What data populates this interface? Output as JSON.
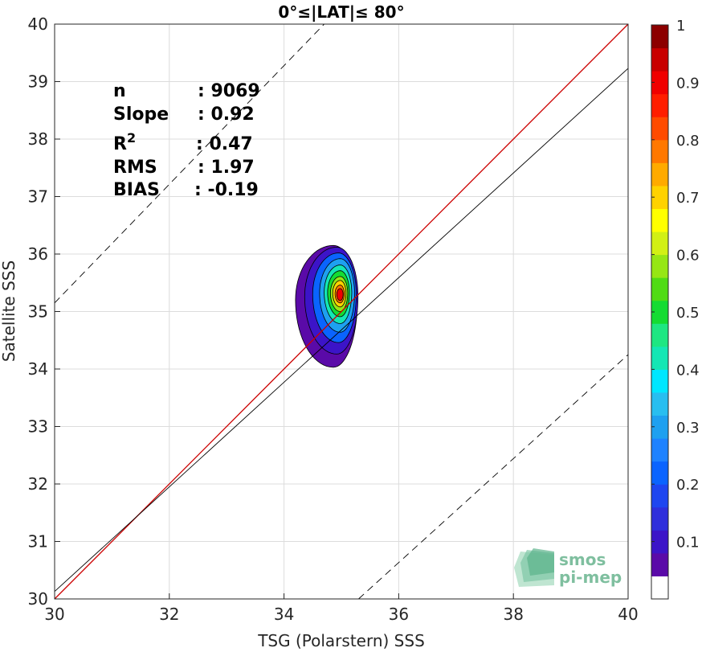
{
  "chart_data": {
    "type": "contour-density-scatter",
    "title": "0°≤|LAT|≤ 80°",
    "xlabel": "TSG (Polarstern) SSS",
    "ylabel": "Satellite SSS",
    "xlim": [
      30,
      40
    ],
    "ylim": [
      30,
      40
    ],
    "xticks": [
      "30",
      "32",
      "34",
      "36",
      "38",
      "40"
    ],
    "yticks": [
      "30",
      "31",
      "32",
      "33",
      "34",
      "35",
      "36",
      "37",
      "38",
      "39",
      "40"
    ],
    "grid": true,
    "stats": [
      {
        "label": "n",
        "sep": ": ",
        "value": "9069"
      },
      {
        "label": "Slope",
        "sep": ": ",
        "value": "0.92"
      },
      {
        "label": "R",
        "sup": "2",
        "sep": ": ",
        "value": "0.47"
      },
      {
        "label": "RMS",
        "sep": ": ",
        "value": "1.97"
      },
      {
        "label": "BIAS",
        "sep": ": ",
        "value": "-0.19"
      }
    ],
    "lines": [
      {
        "name": "identity",
        "color": "#cc0000",
        "style": "solid",
        "points": [
          [
            30,
            30
          ],
          [
            40,
            40
          ]
        ]
      },
      {
        "name": "regression",
        "color": "#000000",
        "style": "solid",
        "points": [
          [
            30,
            30.13
          ],
          [
            40,
            39.23
          ]
        ]
      },
      {
        "name": "upper-bound",
        "color": "#000000",
        "style": "dashed",
        "points": [
          [
            30,
            35.15
          ],
          [
            34.7,
            40
          ]
        ]
      },
      {
        "name": "lower-bound",
        "color": "#000000",
        "style": "dashed",
        "points": [
          [
            35.3,
            30
          ],
          [
            40,
            34.25
          ]
        ]
      }
    ],
    "density_center": [
      34.98,
      35.3
    ],
    "contours": [
      {
        "level": 0.05,
        "rx": [
          0.66,
          0.42
        ],
        "ry": [
          1.17,
          0.95
        ],
        "shift": [
          -0.12,
          -0.1
        ]
      },
      {
        "level": 0.1,
        "rx": [
          0.56,
          0.37
        ],
        "ry": [
          1.0,
          0.86
        ],
        "shift": [
          -0.06,
          -0.04
        ]
      },
      {
        "level": 0.2,
        "rx": [
          0.45,
          0.31
        ],
        "ry": [
          0.84,
          0.72
        ],
        "shift": [
          -0.03,
          0.0
        ]
      },
      {
        "level": 0.3,
        "rx": [
          0.36,
          0.25
        ],
        "ry": [
          0.68,
          0.6
        ],
        "shift": [
          0.0,
          0.02
        ]
      },
      {
        "level": 0.4,
        "rx": [
          0.28,
          0.2
        ],
        "ry": [
          0.54,
          0.48
        ],
        "shift": [
          0.0,
          0.03
        ]
      },
      {
        "level": 0.5,
        "rx": [
          0.22,
          0.16
        ],
        "ry": [
          0.42,
          0.38
        ],
        "shift": [
          0.0,
          0.03
        ]
      },
      {
        "level": 0.6,
        "rx": [
          0.17,
          0.13
        ],
        "ry": [
          0.32,
          0.29
        ],
        "shift": [
          0.0,
          0.02
        ]
      },
      {
        "level": 0.7,
        "rx": [
          0.13,
          0.1
        ],
        "ry": [
          0.24,
          0.22
        ],
        "shift": [
          0.0,
          0.02
        ]
      },
      {
        "level": 0.8,
        "rx": [
          0.09,
          0.07
        ],
        "ry": [
          0.16,
          0.15
        ],
        "shift": [
          0.0,
          0.01
        ]
      },
      {
        "level": 0.9,
        "rx": [
          0.06,
          0.05
        ],
        "ry": [
          0.11,
          0.1
        ],
        "shift": [
          0.0,
          0.0
        ]
      }
    ],
    "colorbar": {
      "min": 0,
      "max": 1,
      "ticks": [
        "0.1",
        "0.2",
        "0.3",
        "0.4",
        "0.5",
        "0.6",
        "0.7",
        "0.8",
        "0.9",
        "1"
      ],
      "colors": [
        "#ffffff",
        "#5a0aa8",
        "#3c14c8",
        "#2f2fdc",
        "#1e46f0",
        "#0a64ff",
        "#1e82ff",
        "#1ea0f0",
        "#28bef0",
        "#00e6ff",
        "#14e6b4",
        "#1ee682",
        "#14dc32",
        "#50dc14",
        "#96e614",
        "#d2f014",
        "#ffff00",
        "#ffd200",
        "#ffaa00",
        "#ff7800",
        "#ff4b00",
        "#ff1e00",
        "#f00000",
        "#c80000",
        "#8c0000"
      ]
    },
    "watermark": [
      "smos",
      "pi-mep"
    ]
  }
}
